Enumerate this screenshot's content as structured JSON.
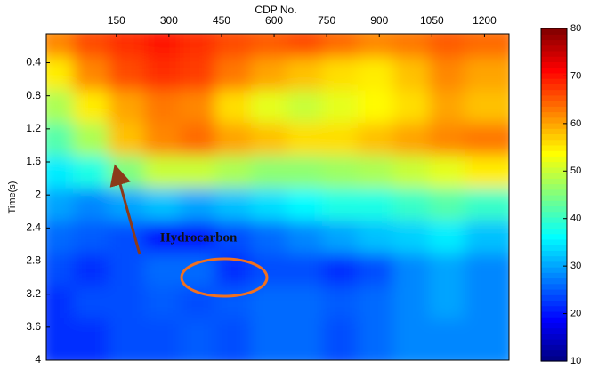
{
  "chart_data": {
    "type": "heatmap",
    "x_label": "CDP No.",
    "y_label": "Time(s)",
    "annotation": "Hydrocarbon",
    "xlim": [
      -50,
      1270
    ],
    "xticks": [
      150,
      300,
      450,
      600,
      750,
      900,
      1050,
      1200
    ],
    "ylim": [
      4,
      0.05
    ],
    "yticks": [
      0.4,
      0.8,
      1.2,
      1.6,
      2,
      2.4,
      2.8,
      3.2,
      3.6,
      4
    ],
    "colormap": "jet",
    "zlim": [
      10,
      80
    ],
    "zticks": [
      10,
      20,
      30,
      40,
      50,
      60,
      70,
      80
    ],
    "values": [
      [
        62,
        66,
        68,
        70,
        68,
        66,
        65,
        66,
        64,
        62,
        63,
        65,
        64
      ],
      [
        55,
        62,
        66,
        68,
        67,
        63,
        60,
        58,
        56,
        55,
        58,
        62,
        60
      ],
      [
        48,
        55,
        60,
        63,
        62,
        56,
        52,
        50,
        52,
        54,
        56,
        60,
        58
      ],
      [
        42,
        48,
        58,
        62,
        64,
        60,
        58,
        56,
        56,
        58,
        60,
        62,
        63
      ],
      [
        35,
        38,
        45,
        50,
        50,
        48,
        46,
        46,
        47,
        48,
        50,
        52,
        55
      ],
      [
        30,
        28,
        30,
        32,
        30,
        32,
        34,
        36,
        38,
        38,
        40,
        42,
        40
      ],
      [
        26,
        25,
        24,
        20,
        20,
        24,
        26,
        28,
        30,
        32,
        33,
        35,
        32
      ],
      [
        24,
        22,
        24,
        26,
        26,
        22,
        24,
        24,
        22,
        24,
        28,
        30,
        28
      ],
      [
        22,
        24,
        24,
        25,
        24,
        25,
        26,
        26,
        25,
        26,
        28,
        30,
        28
      ],
      [
        22,
        22,
        24,
        24,
        25,
        24,
        26,
        26,
        24,
        26,
        28,
        28,
        28
      ]
    ]
  }
}
